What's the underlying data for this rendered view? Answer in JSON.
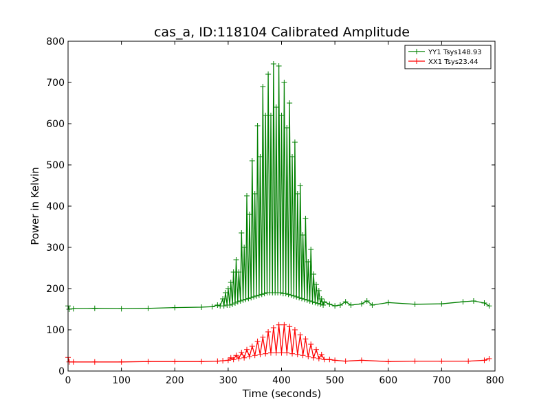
{
  "chart_data": {
    "type": "line",
    "title": "cas_a, ID:118104 Calibrated Amplitude",
    "xlabel": "Time (seconds)",
    "ylabel": "Power in Kelvin",
    "xlim": [
      0,
      800
    ],
    "ylim": [
      0,
      800
    ],
    "xticks": [
      0,
      100,
      200,
      300,
      400,
      500,
      600,
      700,
      800
    ],
    "yticks": [
      0,
      100,
      200,
      300,
      400,
      500,
      600,
      700,
      800
    ],
    "grid": false,
    "legend_position": "top-right",
    "marker": "+",
    "series": [
      {
        "name": "YY1 Tsys148.93",
        "color": "#008000",
        "points": [
          [
            0,
            158
          ],
          [
            2,
            150
          ],
          [
            10,
            151
          ],
          [
            50,
            152
          ],
          [
            100,
            151
          ],
          [
            150,
            152
          ],
          [
            200,
            154
          ],
          [
            250,
            155
          ],
          [
            270,
            156
          ],
          [
            280,
            160
          ],
          [
            285,
            158
          ],
          [
            290,
            175
          ],
          [
            292,
            158
          ],
          [
            295,
            190
          ],
          [
            298,
            160
          ],
          [
            300,
            200
          ],
          [
            303,
            160
          ],
          [
            305,
            215
          ],
          [
            308,
            162
          ],
          [
            310,
            240
          ],
          [
            313,
            165
          ],
          [
            315,
            270
          ],
          [
            318,
            168
          ],
          [
            320,
            240
          ],
          [
            323,
            170
          ],
          [
            325,
            335
          ],
          [
            328,
            172
          ],
          [
            330,
            300
          ],
          [
            333,
            174
          ],
          [
            335,
            425
          ],
          [
            338,
            176
          ],
          [
            340,
            380
          ],
          [
            343,
            178
          ],
          [
            345,
            510
          ],
          [
            348,
            180
          ],
          [
            350,
            430
          ],
          [
            353,
            182
          ],
          [
            355,
            595
          ],
          [
            358,
            184
          ],
          [
            360,
            520
          ],
          [
            363,
            186
          ],
          [
            365,
            690
          ],
          [
            368,
            188
          ],
          [
            370,
            620
          ],
          [
            373,
            190
          ],
          [
            375,
            720
          ],
          [
            378,
            190
          ],
          [
            380,
            620
          ],
          [
            383,
            190
          ],
          [
            385,
            745
          ],
          [
            388,
            190
          ],
          [
            390,
            640
          ],
          [
            393,
            190
          ],
          [
            395,
            740
          ],
          [
            398,
            190
          ],
          [
            400,
            620
          ],
          [
            403,
            188
          ],
          [
            405,
            700
          ],
          [
            408,
            188
          ],
          [
            410,
            590
          ],
          [
            413,
            186
          ],
          [
            415,
            650
          ],
          [
            418,
            184
          ],
          [
            420,
            520
          ],
          [
            423,
            182
          ],
          [
            425,
            555
          ],
          [
            428,
            180
          ],
          [
            430,
            430
          ],
          [
            433,
            178
          ],
          [
            435,
            450
          ],
          [
            438,
            176
          ],
          [
            440,
            330
          ],
          [
            443,
            174
          ],
          [
            445,
            370
          ],
          [
            448,
            172
          ],
          [
            450,
            265
          ],
          [
            453,
            170
          ],
          [
            455,
            295
          ],
          [
            458,
            168
          ],
          [
            460,
            235
          ],
          [
            463,
            166
          ],
          [
            465,
            210
          ],
          [
            468,
            164
          ],
          [
            470,
            195
          ],
          [
            473,
            162
          ],
          [
            475,
            175
          ],
          [
            478,
            160
          ],
          [
            480,
            168
          ],
          [
            490,
            162
          ],
          [
            500,
            158
          ],
          [
            510,
            160
          ],
          [
            520,
            168
          ],
          [
            530,
            160
          ],
          [
            550,
            163
          ],
          [
            560,
            170
          ],
          [
            570,
            160
          ],
          [
            600,
            166
          ],
          [
            650,
            162
          ],
          [
            700,
            163
          ],
          [
            740,
            168
          ],
          [
            760,
            170
          ],
          [
            780,
            165
          ],
          [
            789,
            158
          ]
        ]
      },
      {
        "name": "XX1 Tsys23.44",
        "color": "#ff0000",
        "points": [
          [
            0,
            33
          ],
          [
            2,
            22
          ],
          [
            10,
            22
          ],
          [
            50,
            22
          ],
          [
            100,
            22
          ],
          [
            150,
            23
          ],
          [
            200,
            23
          ],
          [
            250,
            23
          ],
          [
            280,
            24
          ],
          [
            290,
            25
          ],
          [
            300,
            26
          ],
          [
            305,
            32
          ],
          [
            310,
            28
          ],
          [
            315,
            38
          ],
          [
            320,
            30
          ],
          [
            325,
            45
          ],
          [
            330,
            32
          ],
          [
            335,
            52
          ],
          [
            340,
            35
          ],
          [
            345,
            60
          ],
          [
            350,
            38
          ],
          [
            355,
            72
          ],
          [
            360,
            40
          ],
          [
            365,
            82
          ],
          [
            370,
            42
          ],
          [
            375,
            95
          ],
          [
            380,
            44
          ],
          [
            385,
            105
          ],
          [
            390,
            44
          ],
          [
            395,
            112
          ],
          [
            400,
            44
          ],
          [
            405,
            112
          ],
          [
            410,
            44
          ],
          [
            415,
            108
          ],
          [
            420,
            42
          ],
          [
            425,
            100
          ],
          [
            430,
            40
          ],
          [
            435,
            88
          ],
          [
            440,
            38
          ],
          [
            445,
            78
          ],
          [
            450,
            35
          ],
          [
            455,
            65
          ],
          [
            460,
            32
          ],
          [
            465,
            52
          ],
          [
            470,
            30
          ],
          [
            475,
            40
          ],
          [
            480,
            28
          ],
          [
            490,
            28
          ],
          [
            500,
            26
          ],
          [
            520,
            24
          ],
          [
            550,
            26
          ],
          [
            600,
            23
          ],
          [
            650,
            24
          ],
          [
            700,
            24
          ],
          [
            750,
            24
          ],
          [
            780,
            26
          ],
          [
            789,
            30
          ]
        ]
      }
    ]
  }
}
